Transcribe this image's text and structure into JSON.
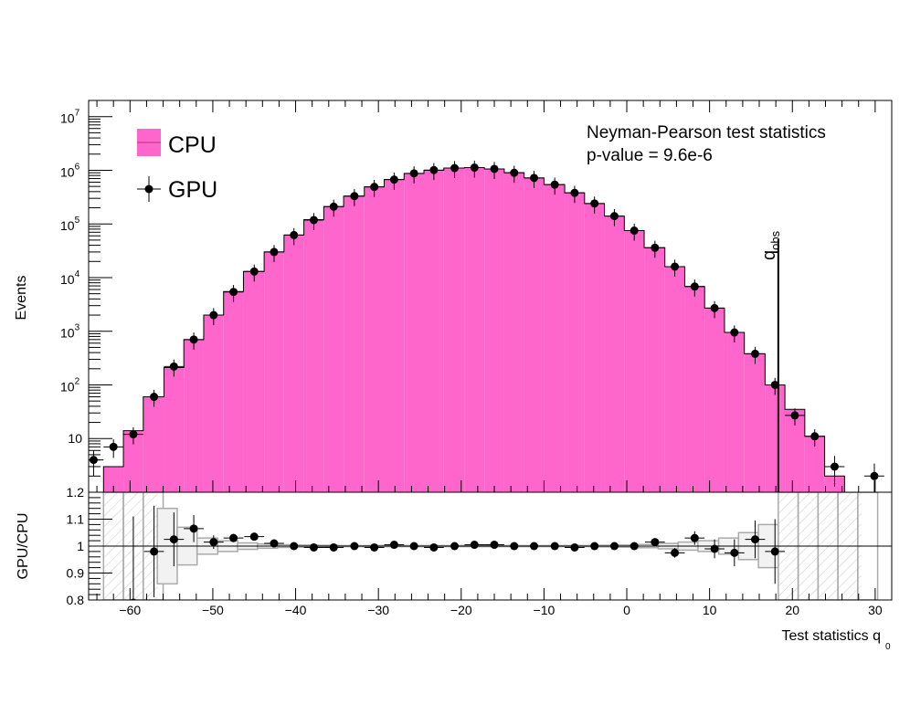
{
  "chart_data": [
    {
      "type": "bar",
      "yscale": "log",
      "ylabel": "Events",
      "xlim": [
        -65,
        32
      ],
      "ylim": [
        1,
        20000000
      ],
      "y_ticks": [
        {
          "value": 10,
          "label": "10"
        },
        {
          "value": 100,
          "base": "10",
          "exp": "2"
        },
        {
          "value": 1000,
          "base": "10",
          "exp": "3"
        },
        {
          "value": 10000,
          "base": "10",
          "exp": "4"
        },
        {
          "value": 100000,
          "base": "10",
          "exp": "5"
        },
        {
          "value": 1000000,
          "base": "10",
          "exp": "6"
        },
        {
          "value": 10000000,
          "base": "10",
          "exp": "7"
        }
      ],
      "annotations": [
        "Neyman-Pearson test statistics",
        "p-value = 9.6e-6"
      ],
      "observed_line": {
        "x": 18.3,
        "label_base": "q",
        "label_sub": "obs"
      },
      "legend": {
        "position": "top-left",
        "entries": [
          "CPU",
          "GPU"
        ]
      },
      "fill_color": "#ff66cc",
      "marker_color": "#000000",
      "series": [
        {
          "name": "CPU",
          "bin_edges": [
            -63.2,
            -60.8,
            -58.4,
            -55.9,
            -53.5,
            -51.1,
            -48.7,
            -46.3,
            -43.8,
            -41.4,
            -39.0,
            -36.6,
            -34.2,
            -31.7,
            -29.3,
            -26.9,
            -24.5,
            -22.1,
            -19.6,
            -17.2,
            -14.8,
            -12.4,
            -10.0,
            -7.5,
            -5.1,
            -2.7,
            -0.3,
            2.1,
            4.6,
            7.0,
            9.4,
            11.8,
            14.2,
            16.7,
            19.1,
            21.5,
            23.9,
            26.3
          ],
          "values": [
            3,
            14,
            60,
            210,
            700,
            2000,
            5500,
            13000,
            30000,
            62000,
            120000,
            210000,
            330000,
            490000,
            670000,
            870000,
            1000000,
            1100000,
            1120000,
            1060000,
            900000,
            720000,
            540000,
            380000,
            240000,
            140000,
            75000,
            36000,
            16000,
            6800,
            2700,
            950,
            380,
            100,
            35,
            11,
            2
          ]
        },
        {
          "name": "GPU",
          "x": [
            -64.4,
            -62.0,
            -59.6,
            -57.1,
            -54.7,
            -52.3,
            -49.9,
            -47.5,
            -45.0,
            -42.6,
            -40.2,
            -37.8,
            -35.4,
            -32.9,
            -30.5,
            -28.1,
            -25.7,
            -23.3,
            -20.8,
            -18.4,
            -16.0,
            -13.6,
            -11.2,
            -8.7,
            -6.3,
            -3.9,
            -1.5,
            0.9,
            3.4,
            5.8,
            8.2,
            10.6,
            13.0,
            15.5,
            17.9,
            20.3,
            22.7,
            25.1,
            29.9
          ],
          "values": [
            4,
            7,
            12,
            60,
            220,
            700,
            2000,
            5400,
            13000,
            30000,
            62000,
            118000,
            210000,
            330000,
            490000,
            670000,
            875000,
            1010000,
            1100000,
            1120000,
            1060000,
            900000,
            720000,
            540000,
            380000,
            240000,
            140000,
            75000,
            36000,
            16000,
            6800,
            2700,
            950,
            380,
            100,
            27,
            11,
            3,
            2
          ]
        }
      ]
    },
    {
      "type": "scatter",
      "ylabel": "GPU/CPU",
      "xlabel": "Test statistics q",
      "xlabel_sub": "0",
      "xlim": [
        -65,
        32
      ],
      "ylim": [
        0.8,
        1.2
      ],
      "x_ticks": [
        {
          "value": -60,
          "label": "−60"
        },
        {
          "value": -50,
          "label": "−50"
        },
        {
          "value": -40,
          "label": "−40"
        },
        {
          "value": -30,
          "label": "−30"
        },
        {
          "value": -20,
          "label": "−20"
        },
        {
          "value": -10,
          "label": "−10"
        },
        {
          "value": 0,
          "label": "0"
        },
        {
          "value": 10,
          "label": "10"
        },
        {
          "value": 20,
          "label": "20"
        },
        {
          "value": 30,
          "label": "30"
        }
      ],
      "y_ticks": [
        {
          "value": 0.8,
          "label": "0.8"
        },
        {
          "value": 0.9,
          "label": "0.9"
        },
        {
          "value": 1.0,
          "label": "1"
        },
        {
          "value": 1.1,
          "label": "1.1"
        },
        {
          "value": 1.2,
          "label": "1.2"
        }
      ],
      "reference_line": 1.0,
      "band_color": "#aaaaaa",
      "uncertainty_band": {
        "bin_edges": [
          -56.7,
          -54.3,
          -51.9,
          -49.4,
          -47.0,
          -44.6,
          -42.2,
          -39.8,
          -37.3,
          -34.9,
          -32.5,
          -30.1,
          -27.7,
          -25.2,
          -22.8,
          -20.4,
          -18.0,
          -15.6,
          -13.1,
          -10.7,
          -8.3,
          -5.9,
          -3.5,
          -1.0,
          1.4,
          3.8,
          6.2,
          8.6,
          11.1,
          13.5,
          15.9,
          18.3
        ],
        "half_widths": [
          0.14,
          0.07,
          0.03,
          0.02,
          0.012,
          0.008,
          0.005,
          0.004,
          0.003,
          0.002,
          0.002,
          0.002,
          0.002,
          0.002,
          0.002,
          0.002,
          0.002,
          0.002,
          0.002,
          0.002,
          0.002,
          0.002,
          0.003,
          0.004,
          0.006,
          0.01,
          0.015,
          0.02,
          0.03,
          0.05,
          0.08
        ]
      },
      "undefined_bins": [
        [
          -63.2,
          -56.7
        ],
        [
          18.3,
          28.3
        ]
      ],
      "points": {
        "x": [
          -59.6,
          -57.1,
          -54.7,
          -52.3,
          -49.9,
          -47.5,
          -45.0,
          -42.6,
          -40.2,
          -37.8,
          -35.4,
          -32.9,
          -30.5,
          -28.1,
          -25.7,
          -23.3,
          -20.8,
          -18.4,
          -16.0,
          -13.6,
          -11.2,
          -8.7,
          -6.3,
          -3.9,
          -1.5,
          0.9,
          3.4,
          5.8,
          8.2,
          10.6,
          13.0,
          15.5,
          17.9
        ],
        "ratio": [
          0.79,
          0.98,
          1.025,
          1.065,
          1.015,
          1.03,
          1.035,
          1.01,
          1.0,
          0.995,
          0.995,
          1.0,
          0.995,
          1.005,
          1.0,
          0.995,
          1.0,
          1.005,
          1.005,
          1.0,
          1.0,
          1.0,
          0.995,
          1.0,
          1.0,
          1.0,
          1.015,
          0.975,
          1.03,
          0.99,
          0.975,
          1.025,
          0.98
        ],
        "err": [
          0.32,
          0.17,
          0.1,
          0.05,
          0.025,
          0.015,
          0.01,
          0.008,
          0.006,
          0.005,
          0.004,
          0.004,
          0.003,
          0.003,
          0.003,
          0.003,
          0.003,
          0.003,
          0.003,
          0.003,
          0.003,
          0.003,
          0.004,
          0.005,
          0.006,
          0.008,
          0.012,
          0.018,
          0.025,
          0.035,
          0.05,
          0.07,
          0.12
        ]
      }
    }
  ]
}
